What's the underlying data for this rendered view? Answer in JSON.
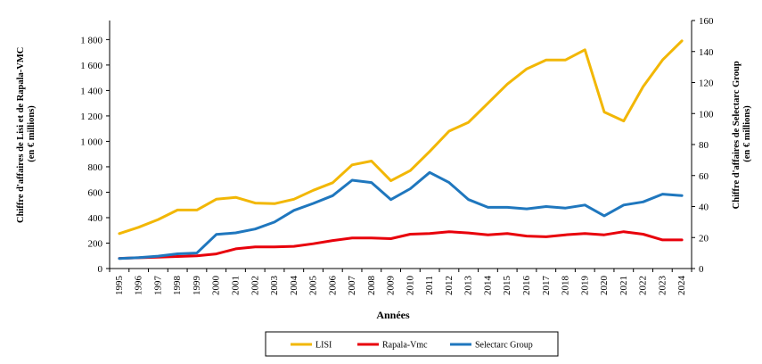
{
  "chart_data": {
    "type": "line",
    "x": [
      "1995",
      "1996",
      "1997",
      "1998",
      "1999",
      "2000",
      "2001",
      "2002",
      "2003",
      "2004",
      "2005",
      "2006",
      "2007",
      "2008",
      "2009",
      "2010",
      "2011",
      "2012",
      "2013",
      "2014",
      "2015",
      "2016",
      "2017",
      "2018",
      "2019",
      "2020",
      "2021",
      "2022",
      "2023",
      "2024"
    ],
    "xlabel": "Années",
    "ylabel_left": [
      "Chiffre d'affaires de Lisi et de Rapala-VMC",
      "(en € millions)"
    ],
    "ylabel_right": [
      "Chiffre d'affaires de Selectarc Group",
      "(en € millions)"
    ],
    "y_left": {
      "ylim": [
        0,
        1950
      ],
      "ticks": [
        0,
        200,
        400,
        600,
        800,
        1000,
        1200,
        1400,
        1600,
        1800
      ],
      "tick_labels": [
        "0",
        "200",
        "400",
        "600",
        "800",
        "1 000",
        "1 200",
        "1 400",
        "1 600",
        "1 800"
      ]
    },
    "y_right": {
      "ylim": [
        0,
        160
      ],
      "ticks": [
        0,
        20,
        40,
        60,
        80,
        100,
        120,
        140,
        160
      ],
      "tick_labels": [
        "0",
        "20",
        "40",
        "60",
        "80",
        "100",
        "120",
        "140",
        "160"
      ]
    },
    "grid": false,
    "legend_position": "bottom",
    "series": [
      {
        "name": "LISI",
        "axis": "left",
        "color": "#F2B705",
        "values": [
          275,
          325,
          385,
          460,
          460,
          545,
          560,
          515,
          510,
          545,
          615,
          675,
          815,
          845,
          690,
          770,
          920,
          1080,
          1150,
          1300,
          1450,
          1570,
          1640,
          1640,
          1720,
          1230,
          1160,
          1430,
          1640,
          1790
        ]
      },
      {
        "name": "Rapala-Vmc",
        "axis": "left",
        "color": "#E8000B",
        "values": [
          80,
          85,
          90,
          95,
          100,
          115,
          155,
          170,
          170,
          175,
          195,
          220,
          240,
          240,
          235,
          270,
          275,
          290,
          280,
          265,
          275,
          255,
          250,
          265,
          275,
          265,
          290,
          270,
          225,
          225
        ]
      },
      {
        "name": "Selectarc Group",
        "axis": "right",
        "color": "#1F77BE",
        "values": [
          6.5,
          7,
          8,
          9.5,
          10,
          22,
          23,
          25.5,
          30,
          37.5,
          42,
          47,
          57,
          55.5,
          44.5,
          51.5,
          62,
          55.5,
          44.5,
          39.5,
          39.5,
          38.5,
          40,
          39,
          41,
          34,
          41,
          43,
          48,
          47
        ]
      }
    ]
  }
}
